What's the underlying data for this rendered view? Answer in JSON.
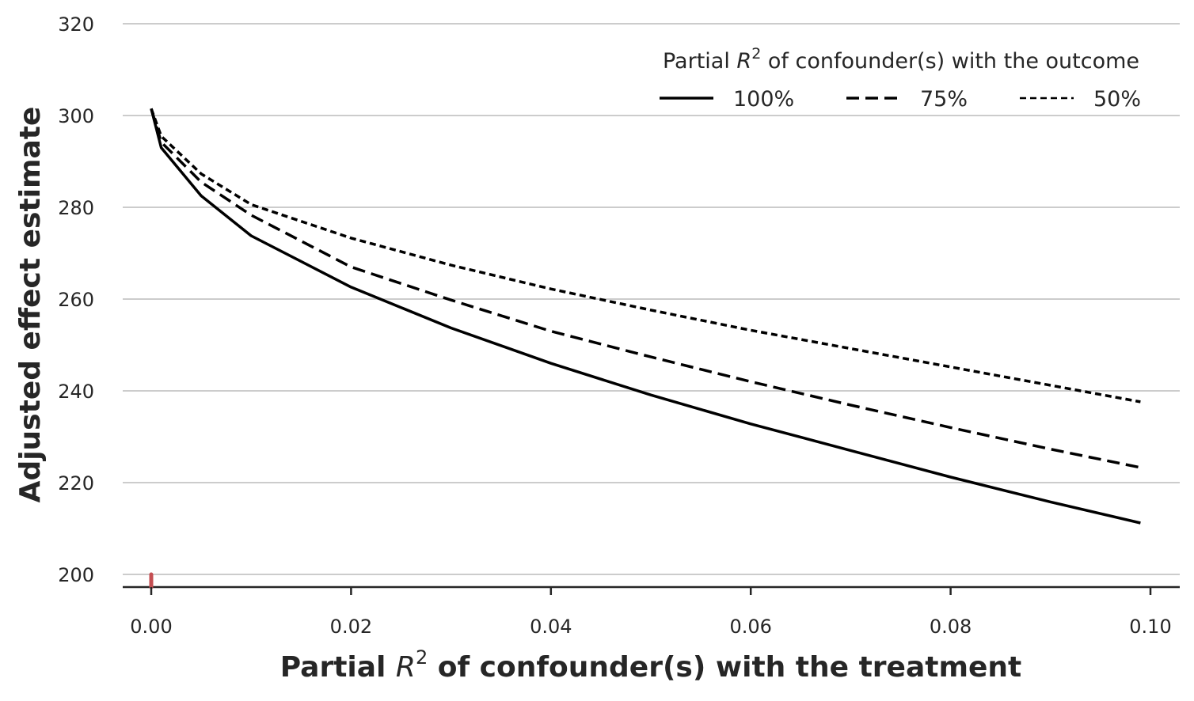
{
  "chart_data": {
    "type": "line",
    "xlabel": {
      "prefix": "Partial ",
      "symbol": "R",
      "superscript": "2",
      "suffix": " of confounder(s) with the treatment"
    },
    "ylabel": "Adjusted effect estimate",
    "xlim": [
      -0.003,
      0.103
    ],
    "ylim": [
      197,
      322
    ],
    "x_ticks": [
      {
        "value": 0.0,
        "label": "0.00"
      },
      {
        "value": 0.02,
        "label": "0.02"
      },
      {
        "value": 0.04,
        "label": "0.04"
      },
      {
        "value": 0.06,
        "label": "0.06"
      },
      {
        "value": 0.08,
        "label": "0.08"
      },
      {
        "value": 0.1,
        "label": "0.10"
      }
    ],
    "y_ticks": [
      {
        "value": 200,
        "label": "200"
      },
      {
        "value": 220,
        "label": "220"
      },
      {
        "value": 240,
        "label": "240"
      },
      {
        "value": 260,
        "label": "260"
      },
      {
        "value": 280,
        "label": "280"
      },
      {
        "value": 300,
        "label": "300"
      },
      {
        "value": 320,
        "label": "320"
      }
    ],
    "grid": "horizontal",
    "legend": {
      "placement": "top-right",
      "title": {
        "prefix": "Partial ",
        "symbol": "R",
        "superscript": "2",
        "suffix": " of confounder(s) with the outcome"
      }
    },
    "x": [
      0.0,
      0.001,
      0.005,
      0.01,
      0.02,
      0.03,
      0.04,
      0.05,
      0.06,
      0.07,
      0.08,
      0.09,
      0.099
    ],
    "series": [
      {
        "name": "100%",
        "style": "solid",
        "color": "#000000",
        "values": [
          301.5,
          293.0,
          282.5,
          273.8,
          262.6,
          253.7,
          246.0,
          239.1,
          232.8,
          227.0,
          221.2,
          215.8,
          211.2
        ]
      },
      {
        "name": "75%",
        "style": "dashed",
        "color": "#000000",
        "values": [
          301.5,
          294.2,
          285.5,
          278.3,
          267.0,
          259.8,
          253.0,
          247.4,
          242.0,
          236.9,
          232.0,
          227.3,
          223.3
        ]
      },
      {
        "name": "50%",
        "style": "dotted-dash",
        "color": "#000000",
        "values": [
          301.5,
          295.5,
          287.3,
          280.6,
          273.3,
          267.4,
          262.2,
          257.6,
          253.2,
          249.2,
          245.2,
          241.2,
          237.6
        ]
      }
    ],
    "marker": {
      "x": 0.0,
      "from": 197,
      "to": 200,
      "color": "#c44e52"
    }
  }
}
